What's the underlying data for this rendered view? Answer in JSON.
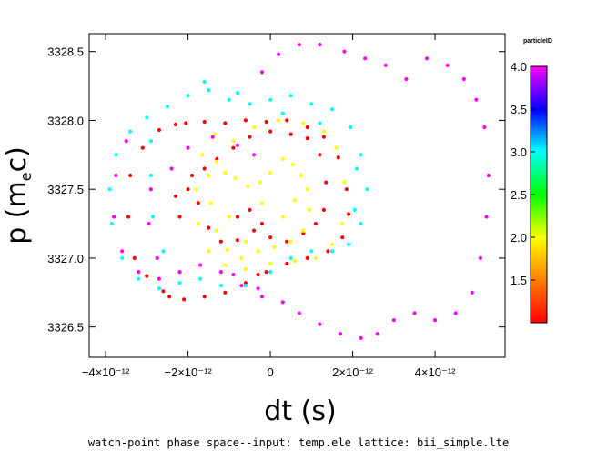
{
  "chart_data": {
    "type": "scatter",
    "title": "",
    "xlabel": "dt (s)",
    "ylabel": "p (m_ec)",
    "ylabel_parts": {
      "main": "p (m",
      "sub": "e",
      "tail": "c)"
    },
    "caption": "watch-point phase space--input: temp.ele   lattice: bii_simple.lte",
    "xlim": [
      -4.4e-12,
      5.7e-12
    ],
    "ylim": [
      3326.28,
      3328.63
    ],
    "x_ticks": [
      {
        "value": -4e-12,
        "label": "−4×10⁻¹²"
      },
      {
        "value": -2e-12,
        "label": "−2×10⁻¹²"
      },
      {
        "value": 0,
        "label": "0"
      },
      {
        "value": 2e-12,
        "label": "2×10⁻¹²"
      },
      {
        "value": 4e-12,
        "label": "4×10⁻¹²"
      }
    ],
    "y_ticks": [
      {
        "value": 3326.5,
        "label": "3326.5"
      },
      {
        "value": 3327.0,
        "label": "3327.0"
      },
      {
        "value": 3327.5,
        "label": "3327.5"
      },
      {
        "value": 3328.0,
        "label": "3328.0"
      },
      {
        "value": 3328.5,
        "label": "3328.5"
      }
    ],
    "colorbar": {
      "title": "particleID",
      "range": [
        1.0,
        4.0
      ],
      "ticks": [
        {
          "value": 1.5,
          "label": "1.5"
        },
        {
          "value": 2.0,
          "label": "2.0"
        },
        {
          "value": 2.5,
          "label": "2.5"
        },
        {
          "value": 3.0,
          "label": "3.0"
        },
        {
          "value": 3.5,
          "label": "3.5"
        },
        {
          "value": 4.0,
          "label": "4.0"
        }
      ]
    },
    "series": [
      {
        "particleID": 1,
        "color": "#ff0000",
        "points": [
          [
            -2.05e-12,
            3327.98
          ],
          [
            -1.6e-12,
            3327.99
          ],
          [
            -1.1e-12,
            3327.98
          ],
          [
            -6e-13,
            3328.0
          ],
          [
            -1e-13,
            3327.99
          ],
          [
            4e-13,
            3328.0
          ],
          [
            9e-13,
            3327.95
          ],
          [
            1.3e-12,
            3327.88
          ],
          [
            1.65e-12,
            3327.73
          ],
          [
            1.85e-12,
            3327.5
          ],
          [
            1.9e-12,
            3327.32
          ],
          [
            1.75e-12,
            3327.15
          ],
          [
            1.4e-12,
            3327.05
          ],
          [
            9e-13,
            3327.0
          ],
          [
            4e-13,
            3326.96
          ],
          [
            -1e-13,
            3326.9
          ],
          [
            -6e-13,
            3326.82
          ],
          [
            -1.1e-12,
            3326.75
          ],
          [
            -1.6e-12,
            3326.72
          ],
          [
            -2.1e-12,
            3326.7
          ],
          [
            -2.6e-12,
            3326.76
          ],
          [
            -3e-12,
            3326.87
          ],
          [
            -3.3e-12,
            3327.0
          ],
          [
            -3.45e-12,
            3327.3
          ],
          [
            -3.4e-12,
            3327.6
          ],
          [
            -3.1e-12,
            3327.8
          ],
          [
            -2.7e-12,
            3327.93
          ],
          [
            -2.3e-12,
            3327.97
          ],
          [
            -1.9e-12,
            3327.6
          ],
          [
            -1.75e-12,
            3327.4
          ],
          [
            -1.5e-12,
            3327.22
          ],
          [
            -1.2e-12,
            3327.12
          ],
          [
            -8e-13,
            3327.13
          ],
          [
            -4e-13,
            3327.2
          ],
          [
            0.0,
            3327.15
          ],
          [
            4e-13,
            3327.12
          ],
          [
            8e-13,
            3327.18
          ],
          [
            1.1e-12,
            3327.25
          ],
          [
            1.3e-12,
            3327.35
          ],
          [
            1.35e-12,
            3327.55
          ],
          [
            1.2e-12,
            3327.75
          ],
          [
            9e-13,
            3327.87
          ],
          [
            5e-13,
            3327.9
          ],
          [
            0.0,
            3327.92
          ],
          [
            -5e-13,
            3327.88
          ],
          [
            -9e-13,
            3327.8
          ],
          [
            -1.3e-12,
            3327.72
          ],
          [
            -1.6e-12,
            3327.65
          ],
          [
            -2e-13,
            3327.25
          ],
          [
            -5e-13,
            3327.35
          ],
          [
            -8e-13,
            3327.3
          ],
          [
            -2.2e-12,
            3327.3
          ],
          [
            -2e-12,
            3327.5
          ],
          [
            -2.3e-12,
            3327.45
          ],
          [
            -3e-13,
            3326.88
          ],
          [
            -2.45e-12,
            3326.72
          ]
        ]
      },
      {
        "particleID": 2,
        "color": "#ffff00",
        "points": [
          [
            -1.5e-12,
            3327.6
          ],
          [
            -1.45e-12,
            3327.4
          ],
          [
            -1.3e-12,
            3327.2
          ],
          [
            -1.05e-12,
            3327.06
          ],
          [
            -7e-13,
            3327.0
          ],
          [
            -3e-13,
            3327.05
          ],
          [
            1e-13,
            3327.08
          ],
          [
            5e-13,
            3327.12
          ],
          [
            8e-13,
            3327.2
          ],
          [
            9.5e-13,
            3327.35
          ],
          [
            9e-13,
            3327.5
          ],
          [
            7.5e-13,
            3327.6
          ],
          [
            5.5e-13,
            3327.68
          ],
          [
            3e-13,
            3327.72
          ],
          [
            0.0,
            3327.62
          ],
          [
            -2.5e-13,
            3327.55
          ],
          [
            -5.5e-13,
            3327.52
          ],
          [
            -8.5e-13,
            3327.58
          ],
          [
            -1.1e-12,
            3327.62
          ],
          [
            -1.3e-12,
            3327.7
          ],
          [
            -9e-13,
            3327.85
          ],
          [
            -4e-13,
            3327.95
          ],
          [
            2e-13,
            3328.0
          ],
          [
            8e-13,
            3327.98
          ],
          [
            1.3e-12,
            3327.92
          ],
          [
            1.6e-12,
            3327.8
          ],
          [
            1.8e-12,
            3327.55
          ],
          [
            1.75e-12,
            3327.25
          ],
          [
            1.5e-12,
            3327.1
          ],
          [
            1.1e-12,
            3327.0
          ],
          [
            6e-13,
            3326.98
          ],
          [
            0.0,
            3326.96
          ],
          [
            -6e-13,
            3326.92
          ],
          [
            -1.1e-12,
            3326.95
          ],
          [
            -1.5e-12,
            3327.05
          ],
          [
            -1.75e-12,
            3327.25
          ],
          [
            -1.8e-12,
            3327.5
          ],
          [
            -1.65e-12,
            3327.75
          ],
          [
            -1.35e-12,
            3327.9
          ],
          [
            -6e-13,
            3327.12
          ],
          [
            3e-13,
            3327.3
          ],
          [
            -2e-13,
            3327.4
          ],
          [
            6e-13,
            3327.42
          ],
          [
            -1e-12,
            3327.3
          ]
        ]
      },
      {
        "particleID": 3,
        "color": "#00ffff",
        "points": [
          [
            -3.9e-12,
            3327.5
          ],
          [
            -3.85e-12,
            3327.25
          ],
          [
            -3.6e-12,
            3327.0
          ],
          [
            -3.2e-12,
            3326.85
          ],
          [
            -2.7e-12,
            3326.78
          ],
          [
            -2.2e-12,
            3326.82
          ],
          [
            -1.7e-12,
            3326.85
          ],
          [
            -1.2e-12,
            3326.8
          ],
          [
            -6e-13,
            3326.8
          ],
          [
            0.0,
            3326.9
          ],
          [
            5e-13,
            3327.0
          ],
          [
            1e-12,
            3327.05
          ],
          [
            1.5e-12,
            3327.05
          ],
          [
            1.9e-12,
            3327.1
          ],
          [
            2.2e-12,
            3327.25
          ],
          [
            2.35e-12,
            3327.5
          ],
          [
            2.2e-12,
            3327.75
          ],
          [
            1.95e-12,
            3327.95
          ],
          [
            1.5e-12,
            3328.08
          ],
          [
            1e-12,
            3328.12
          ],
          [
            5e-13,
            3328.18
          ],
          [
            0.0,
            3328.15
          ],
          [
            -5e-13,
            3328.12
          ],
          [
            -1e-12,
            3328.15
          ],
          [
            -1.5e-12,
            3328.22
          ],
          [
            -2e-12,
            3328.18
          ],
          [
            -2.5e-12,
            3328.1
          ],
          [
            -3e-12,
            3328.02
          ],
          [
            -3.4e-12,
            3327.92
          ],
          [
            -3.75e-12,
            3327.75
          ],
          [
            -2.9e-12,
            3327.6
          ],
          [
            -2.85e-12,
            3327.3
          ],
          [
            -2.6e-12,
            3327.05
          ],
          [
            -2.9e-12,
            3327.85
          ],
          [
            3e-13,
            3328.05
          ],
          [
            1.2e-12,
            3327.98
          ],
          [
            2.05e-12,
            3327.35
          ],
          [
            2.1e-12,
            3327.65
          ],
          [
            -1.6e-12,
            3328.28
          ],
          [
            -8e-13,
            3328.2
          ]
        ]
      },
      {
        "particleID": 4,
        "color": "#ff00ff",
        "points": [
          [
            -3.5e-12,
            3327.85
          ],
          [
            -3.75e-12,
            3327.6
          ],
          [
            -3.8e-12,
            3327.3
          ],
          [
            -3.6e-12,
            3327.05
          ],
          [
            -3.2e-12,
            3326.9
          ],
          [
            -2.7e-12,
            3326.85
          ],
          [
            -2.2e-12,
            3326.9
          ],
          [
            -1.7e-12,
            3326.95
          ],
          [
            -1.2e-12,
            3326.9
          ],
          [
            -7e-13,
            3326.8
          ],
          [
            -2e-13,
            3326.72
          ],
          [
            3e-13,
            3326.68
          ],
          [
            7e-13,
            3326.6
          ],
          [
            1.2e-12,
            3326.52
          ],
          [
            1.7e-12,
            3326.45
          ],
          [
            2.2e-12,
            3326.42
          ],
          [
            2.6e-12,
            3326.45
          ],
          [
            3e-12,
            3326.55
          ],
          [
            3.5e-12,
            3326.6
          ],
          [
            4e-12,
            3326.55
          ],
          [
            4.5e-12,
            3326.6
          ],
          [
            4.9e-12,
            3326.75
          ],
          [
            5.1e-12,
            3327.0
          ],
          [
            5.25e-12,
            3327.3
          ],
          [
            5.3e-12,
            3327.6
          ],
          [
            5.2e-12,
            3327.95
          ],
          [
            5e-12,
            3328.15
          ],
          [
            4.7e-12,
            3328.3
          ],
          [
            4.3e-12,
            3328.4
          ],
          [
            3.8e-12,
            3328.45
          ],
          [
            3.3e-12,
            3328.3
          ],
          [
            2.8e-12,
            3328.4
          ],
          [
            2.3e-12,
            3328.45
          ],
          [
            1.8e-12,
            3328.5
          ],
          [
            1.2e-12,
            3328.55
          ],
          [
            7e-13,
            3328.55
          ],
          [
            2e-13,
            3328.48
          ],
          [
            -2e-13,
            3328.35
          ],
          [
            -2.9e-12,
            3327.5
          ],
          [
            -2.95e-12,
            3327.25
          ],
          [
            -2.75e-12,
            3327.0
          ],
          [
            -2.4e-12,
            3327.65
          ],
          [
            -2e-12,
            3327.8
          ],
          [
            -1.4e-12,
            3327.88
          ],
          [
            -8e-13,
            3327.82
          ],
          [
            -4e-13,
            3327.75
          ],
          [
            -9e-13,
            3326.88
          ],
          [
            -3e-13,
            3326.78
          ]
        ]
      }
    ]
  }
}
